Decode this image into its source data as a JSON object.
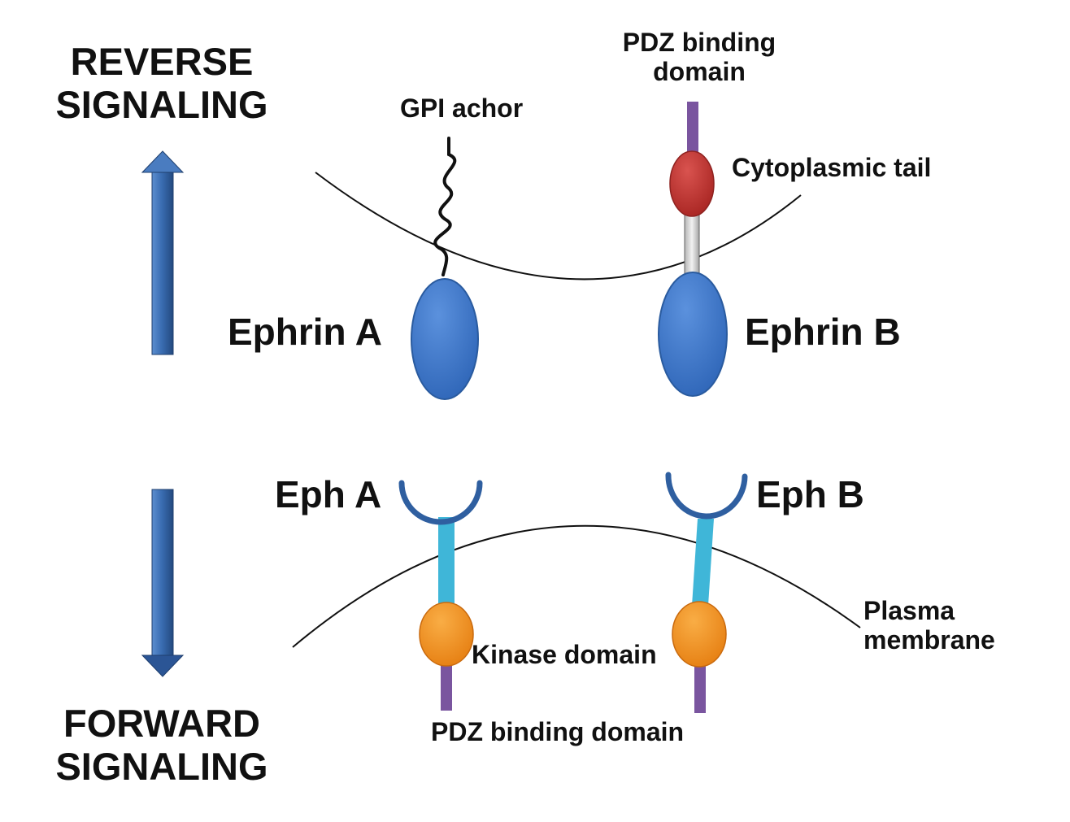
{
  "colors": {
    "arrow": "#2f5f9c",
    "ephrin": "#3f77c9",
    "receptor_cup": "#2f5fa0",
    "receptor_stem": "#3fb6d8",
    "kinase": "#f39422",
    "cytoplasmic_tail": "#c0322f",
    "pdz": "#7a559f",
    "membrane": "#111111"
  },
  "labels": {
    "reverse_signaling": [
      "REVERSE",
      "SIGNALING"
    ],
    "forward_signaling": [
      "FORWARD",
      "SIGNALING"
    ],
    "pdz_binding_domain_top": [
      "PDZ binding",
      "domain"
    ],
    "gpi_anchor": "GPI achor",
    "cytoplasmic_tail": "Cytoplasmic tail",
    "ephrin_a": "Ephrin A",
    "ephrin_b": "Ephrin B",
    "eph_a": "Eph A",
    "eph_b": "Eph B",
    "plasma_membrane": [
      "Plasma",
      "membrane"
    ],
    "kinase_domain": "Kinase domain",
    "pdz_binding_domain_bottom": "PDZ binding domain"
  }
}
